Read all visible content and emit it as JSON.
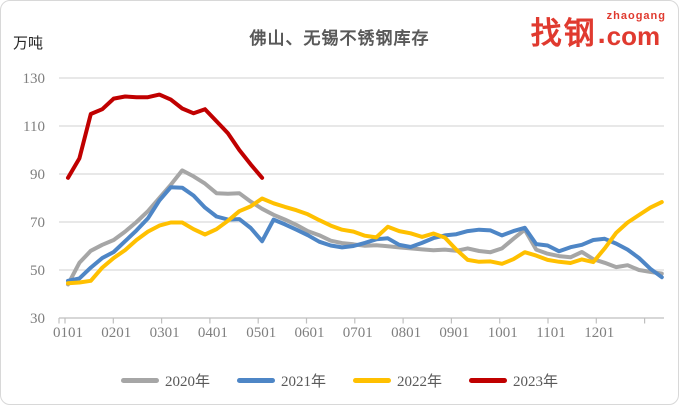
{
  "header": {
    "title": "佛山、无锡不锈钢库存",
    "y_axis_unit": "万吨"
  },
  "logo": {
    "text_cn": "找钢",
    "dot": ".",
    "text_super": "zhaogang",
    "text_com": "com",
    "color": "#e03a2f"
  },
  "chart_data": {
    "type": "line",
    "title": "佛山、无锡不锈钢库存",
    "ylabel": "万吨",
    "ylim": [
      30,
      130
    ],
    "yticks": [
      30,
      50,
      70,
      90,
      110,
      130
    ],
    "x_tick_labels": [
      "0101",
      "0201",
      "0301",
      "0401",
      "0501",
      "0601",
      "0701",
      "0801",
      "0901",
      "1001",
      "1101",
      "1201"
    ],
    "x_unit": "week-of-year, 53 points Jan-Dec",
    "grid": true,
    "legend_position": "bottom",
    "series": [
      {
        "name": "2020年",
        "color": "#a6a6a6",
        "values": [
          44,
          53,
          58,
          60.5,
          62.5,
          66,
          70,
          74.5,
          80,
          85.5,
          91.5,
          89,
          86,
          82,
          81.8,
          82,
          78.5,
          75.5,
          73,
          71,
          68.8,
          66.2,
          64.5,
          62.2,
          61.2,
          60.7,
          60.1,
          60.3,
          59.9,
          59.4,
          59,
          58.6,
          58.2,
          58.5,
          58,
          59,
          57.9,
          57.4,
          59,
          63,
          66.8,
          58.5,
          56.8,
          55.8,
          55.3,
          57.5,
          54.5,
          53,
          51.2,
          52,
          50,
          49.2,
          48.5
        ]
      },
      {
        "name": "2021年",
        "color": "#4e86c6",
        "values": [
          45.5,
          46.5,
          51,
          55,
          57.5,
          62,
          66.5,
          71.5,
          79,
          84.5,
          84.3,
          81,
          76,
          72.3,
          71,
          71.2,
          67.5,
          62,
          71,
          69,
          66.8,
          64.5,
          61.8,
          60.2,
          59.4,
          60,
          61.3,
          62.8,
          63.2,
          60.5,
          59.6,
          61.3,
          63.3,
          64.4,
          64.9,
          66.2,
          66.8,
          66.5,
          64.4,
          66.2,
          67.6,
          60.8,
          60.2,
          57.8,
          59.5,
          60.5,
          62.5,
          63,
          61,
          58.5,
          55,
          50.5,
          47
        ]
      },
      {
        "name": "2022年",
        "color": "#ffc000",
        "values": [
          44.5,
          44.8,
          45.5,
          51,
          55,
          58.3,
          62.5,
          66,
          68.5,
          69.8,
          69.8,
          67,
          64.8,
          67,
          70.5,
          74.5,
          76.5,
          79.8,
          77.8,
          76.3,
          74.9,
          73.2,
          70.8,
          68.5,
          66.8,
          66,
          64.3,
          63.6,
          68,
          66.2,
          65.3,
          63.8,
          65.2,
          63.5,
          58.5,
          54.2,
          53.4,
          53.6,
          52.6,
          54.5,
          57.4,
          56,
          54.2,
          53.4,
          52.9,
          54.4,
          53.3,
          59,
          65.5,
          69.8,
          72.9,
          76,
          78.3
        ]
      },
      {
        "name": "2023年",
        "color": "#c00000",
        "values": [
          88.4,
          96.5,
          115,
          117,
          121.4,
          122.3,
          122,
          122,
          123.1,
          121,
          117.3,
          115.3,
          117,
          112,
          107,
          100,
          94,
          88.4
        ]
      }
    ]
  }
}
